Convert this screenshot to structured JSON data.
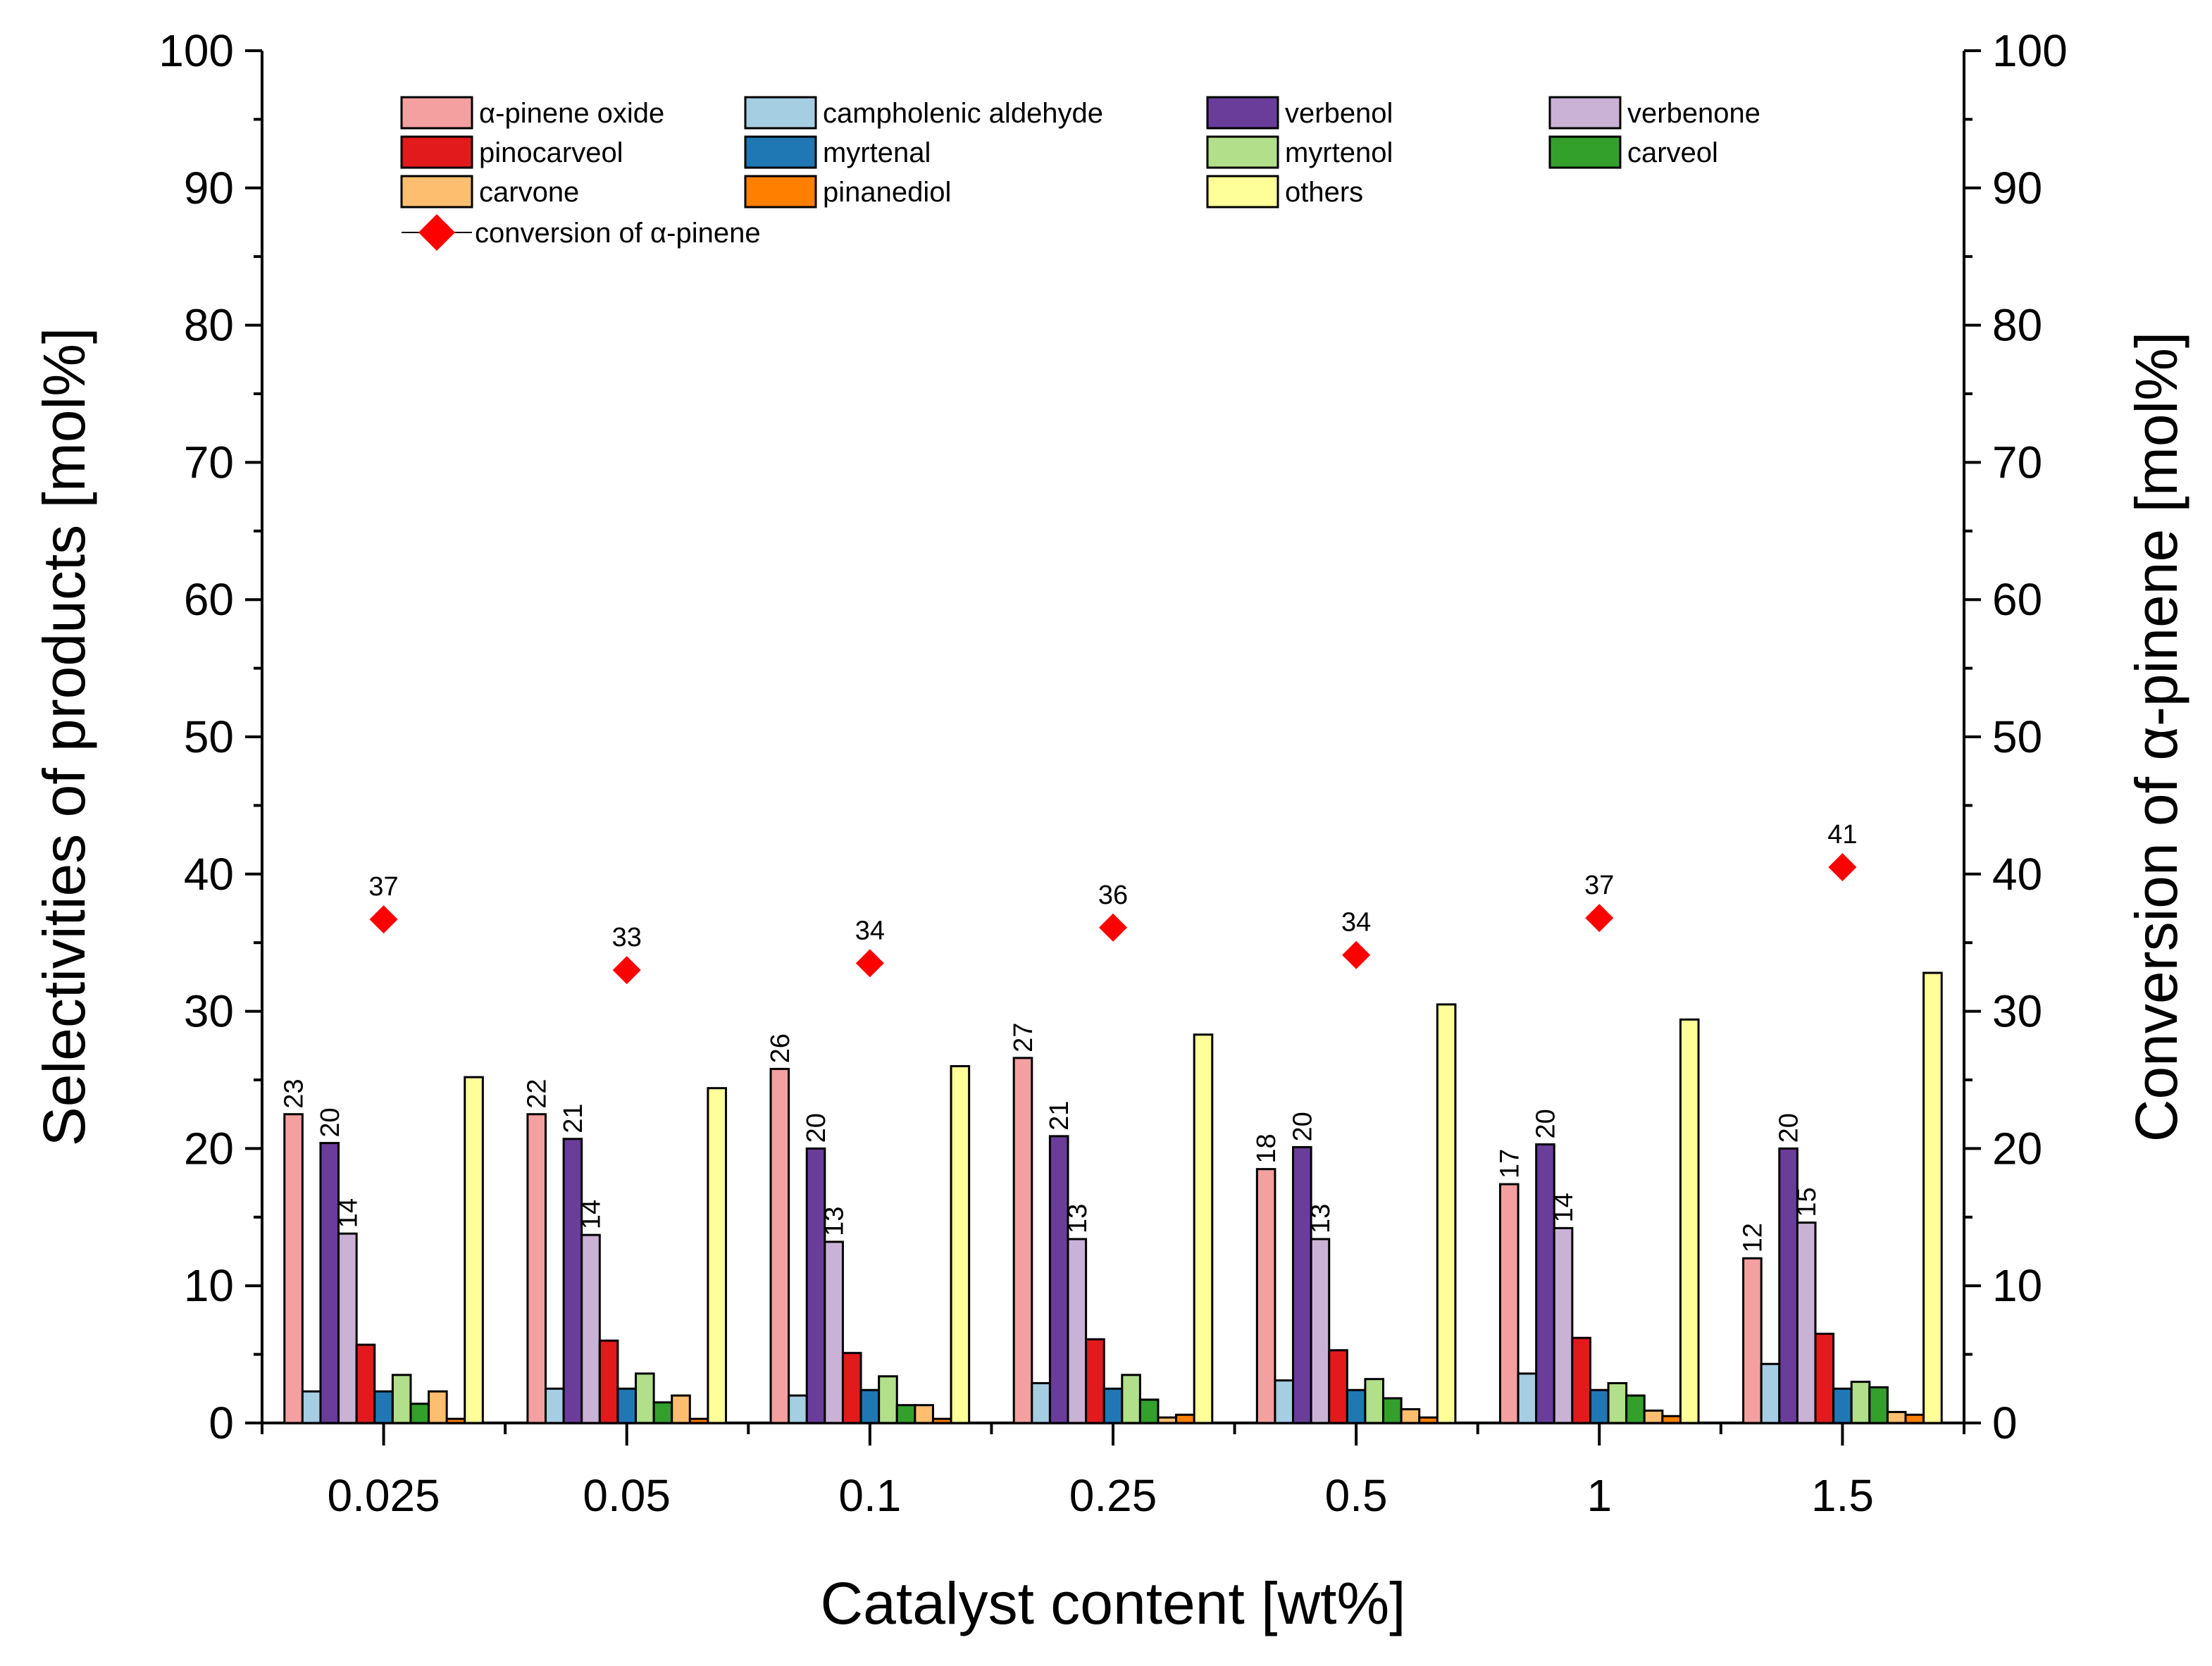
{
  "chart_data": {
    "type": "bar",
    "title": "",
    "xlabel": "Catalyst content [wt%]",
    "ylabel": "Selectivities of products [mol%]",
    "y2label": "Conversion of α-pinene [mol%]",
    "ylim": [
      0,
      100
    ],
    "y2lim": [
      0,
      100
    ],
    "yticks": [
      "0",
      "10",
      "20",
      "30",
      "40",
      "50",
      "60",
      "70",
      "80",
      "90",
      "100"
    ],
    "categories": [
      "0.025",
      "0.05",
      "0.1",
      "0.25",
      "0.5",
      "1",
      "1.5"
    ],
    "series": [
      {
        "name": "α-pinene oxide",
        "color": "#f4a0a0",
        "values": [
          22.5,
          22.5,
          25.8,
          26.6,
          18.5,
          17.4,
          12.0
        ],
        "labels": [
          "23",
          "22",
          "26",
          "27",
          "18",
          "17",
          "12"
        ]
      },
      {
        "name": "campholenic aldehyde",
        "color": "#a6cee3",
        "values": [
          2.3,
          2.5,
          2.0,
          2.9,
          3.1,
          3.6,
          4.3
        ]
      },
      {
        "name": "verbenol",
        "color": "#6a3d9a",
        "values": [
          20.4,
          20.7,
          20.0,
          20.9,
          20.1,
          20.3,
          20.0
        ],
        "labels": [
          "20",
          "21",
          "20",
          "21",
          "20",
          "20",
          "20"
        ]
      },
      {
        "name": "verbenone",
        "color": "#cab2d6",
        "values": [
          13.8,
          13.7,
          13.2,
          13.4,
          13.4,
          14.2,
          14.6
        ],
        "labels": [
          "14",
          "14",
          "13",
          "13",
          "13",
          "14",
          "15"
        ]
      },
      {
        "name": "pinocarveol",
        "color": "#e31a1c",
        "values": [
          5.7,
          6.0,
          5.1,
          6.1,
          5.3,
          6.2,
          6.5
        ]
      },
      {
        "name": "myrtenal",
        "color": "#1f78b4",
        "values": [
          2.3,
          2.5,
          2.4,
          2.5,
          2.4,
          2.4,
          2.5
        ]
      },
      {
        "name": "myrtenol",
        "color": "#b2df8a",
        "values": [
          3.5,
          3.6,
          3.4,
          3.5,
          3.2,
          2.9,
          3.0
        ]
      },
      {
        "name": "carveol",
        "color": "#33a02c",
        "values": [
          1.4,
          1.5,
          1.3,
          1.7,
          1.8,
          2.0,
          2.6
        ]
      },
      {
        "name": "carvone",
        "color": "#fdbf6f",
        "values": [
          2.3,
          2.0,
          1.3,
          0.4,
          1.0,
          0.9,
          0.8
        ]
      },
      {
        "name": "pinanediol",
        "color": "#ff7f00",
        "values": [
          0.3,
          0.3,
          0.3,
          0.6,
          0.4,
          0.5,
          0.6
        ]
      },
      {
        "name": "others",
        "color": "#ffff99",
        "values": [
          25.2,
          24.4,
          26.0,
          28.3,
          30.5,
          29.4,
          32.8
        ]
      }
    ],
    "conversion": {
      "name": "conversion of α-pinene",
      "color": "#ff0000",
      "values": [
        36.7,
        33.0,
        33.5,
        36.1,
        34.1,
        36.8,
        40.5
      ],
      "labels": [
        "37",
        "33",
        "34",
        "36",
        "34",
        "37",
        "41"
      ]
    },
    "legend_position": "top"
  }
}
